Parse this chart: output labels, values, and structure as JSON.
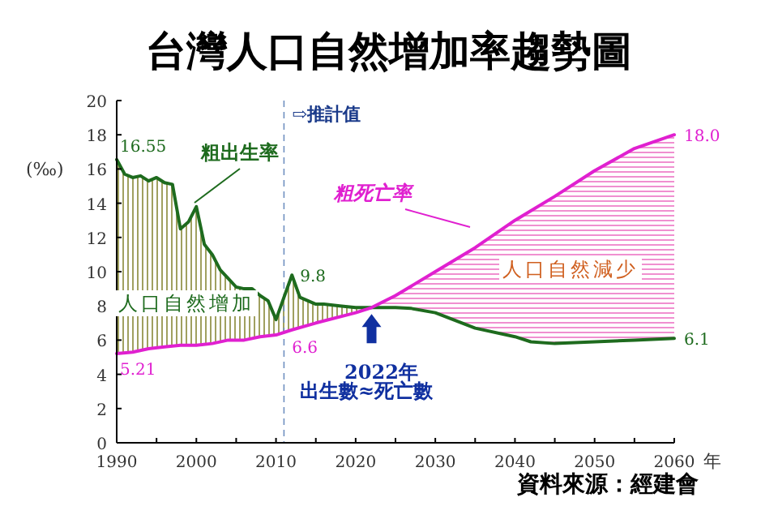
{
  "chart_data": {
    "type": "line",
    "title": "台灣人口自然增加率趨勢圖",
    "xlabel": "年",
    "ylabel": "(‰)",
    "xlim": [
      1990,
      2060
    ],
    "ylim": [
      0,
      20
    ],
    "xticks": [
      1990,
      {
        "value": 1995,
        "label": null
      },
      2000,
      {
        "value": 2005,
        "label": null
      },
      2010,
      {
        "value": 2015,
        "label": null
      },
      2020,
      {
        "value": 2025,
        "label": null
      },
      2030,
      {
        "value": 2035,
        "label": null
      },
      2040,
      {
        "value": 2045,
        "label": null
      },
      2050,
      {
        "value": 2055,
        "label": null
      },
      2060
    ],
    "yticks": [
      0,
      2,
      4,
      6,
      8,
      10,
      12,
      14,
      16,
      18,
      20
    ],
    "grid": false,
    "legend": false,
    "line_style": "solid",
    "marker": "none",
    "series": [
      {
        "name": "粗出生率",
        "color": "#1e6b1e",
        "x": [
          1990,
          1991,
          1992,
          1993,
          1994,
          1995,
          1996,
          1997,
          1998,
          1999,
          2000,
          2001,
          2002,
          2003,
          2004,
          2005,
          2006,
          2007,
          2008,
          2009,
          2010,
          2011,
          2012,
          2013,
          2014,
          2015,
          2016,
          2018,
          2020,
          2022,
          2025,
          2027,
          2030,
          2035,
          2040,
          2042,
          2045,
          2050,
          2055,
          2060
        ],
        "values": [
          16.55,
          15.7,
          15.5,
          15.6,
          15.3,
          15.5,
          15.2,
          15.1,
          12.5,
          12.9,
          13.8,
          11.6,
          11.0,
          10.1,
          9.6,
          9.1,
          9.0,
          9.0,
          8.6,
          8.3,
          7.2,
          8.5,
          9.8,
          8.5,
          8.3,
          8.1,
          8.1,
          8.0,
          7.9,
          7.9,
          7.9,
          7.85,
          7.6,
          6.7,
          6.2,
          5.9,
          5.8,
          5.9,
          6.0,
          6.1
        ]
      },
      {
        "name": "粗死亡率",
        "color": "#e020d0",
        "x": [
          1990,
          1992,
          1994,
          1996,
          1998,
          2000,
          2002,
          2004,
          2006,
          2008,
          2010,
          2012,
          2015,
          2020,
          2022,
          2025,
          2030,
          2035,
          2040,
          2045,
          2050,
          2055,
          2060
        ],
        "values": [
          5.21,
          5.3,
          5.5,
          5.6,
          5.7,
          5.7,
          5.8,
          6.0,
          6.0,
          6.2,
          6.3,
          6.6,
          7.0,
          7.6,
          7.9,
          8.6,
          10.0,
          11.4,
          13.0,
          14.4,
          15.9,
          17.2,
          18.0
        ]
      }
    ],
    "ref_lines": [
      {
        "axis": "x",
        "value": 2011,
        "label": "⇨推計值",
        "color": "#7090c0",
        "line_style": "dashed"
      }
    ],
    "annotations": [
      {
        "text": "16.55",
        "x": 1990,
        "y": 16.55
      },
      {
        "text": "5.21",
        "x": 1990,
        "y": 5.21
      },
      {
        "text": "9.8",
        "x": 2012,
        "y": 9.8
      },
      {
        "text": "6.6",
        "x": 2012,
        "y": 6.6
      },
      {
        "text": "18.0",
        "x": 2060,
        "y": 18.0
      },
      {
        "text": "6.1",
        "x": 2060,
        "y": 6.1
      },
      {
        "text": "2022年",
        "x": 2022,
        "y": 7.9
      },
      "出生數≈死亡數",
      "人口自然增加",
      "人口自然減少",
      "資料來源：經建會"
    ]
  }
}
